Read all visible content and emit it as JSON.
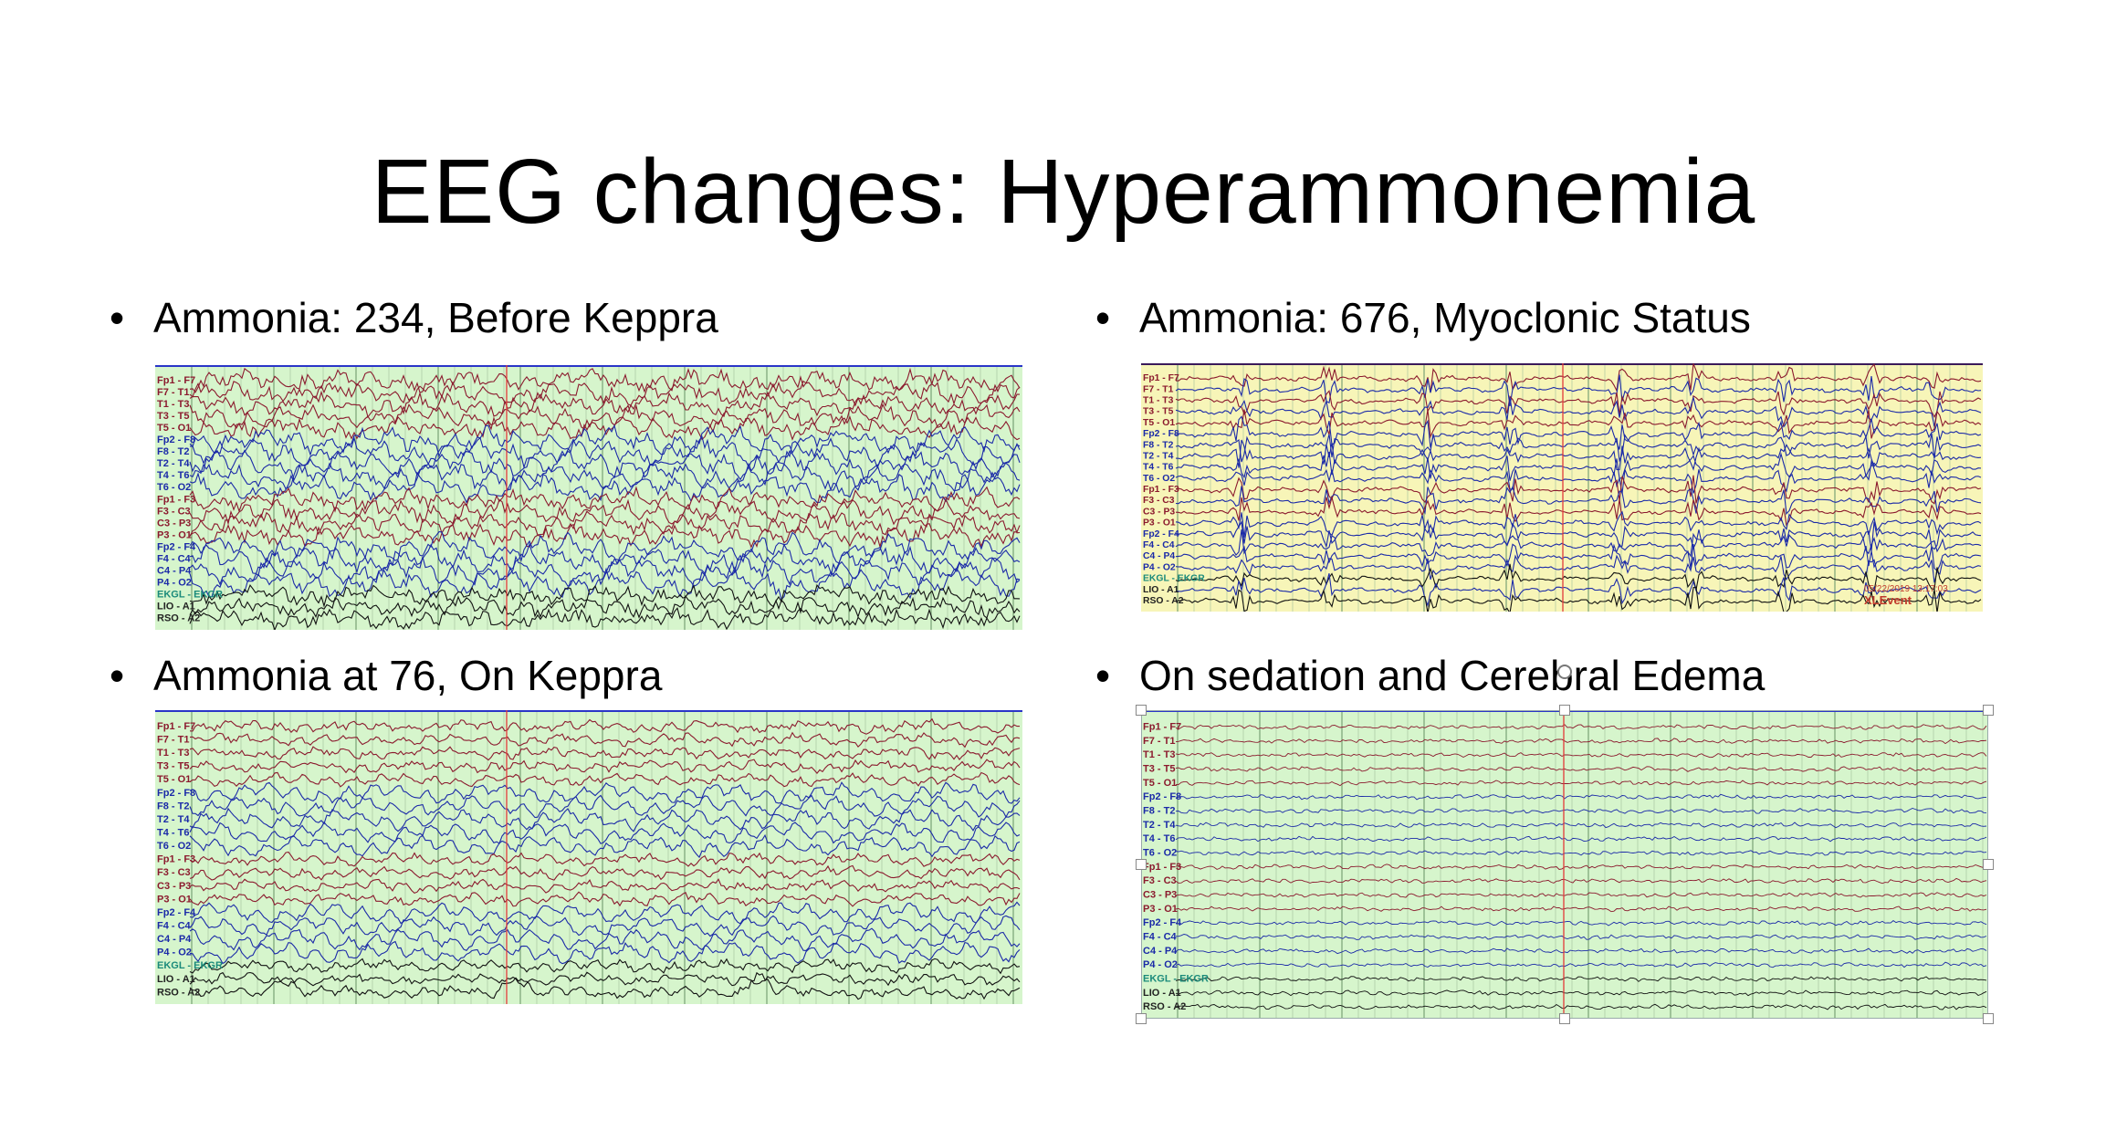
{
  "slide": {
    "title": "EEG changes: Hyperammonemia"
  },
  "panels": [
    {
      "bullet": "Ammonia: 234, Before Keppra",
      "bg": "#d6f5cc",
      "pattern": "dense",
      "channels": [
        "Fp1 - F7",
        "F7 - T1",
        "T1 - T3",
        "T3 - T5",
        "T5 - O1",
        "Fp2 - F8",
        "F8 - T2",
        "T2 - T4",
        "T4 - T6",
        "T6 - O2",
        "Fp1 - F3",
        "F3 - C3",
        "C3 - P3",
        "P3 - O1",
        "Fp2 - F4",
        "F4 - C4",
        "C4 - P4",
        "P4 - O2",
        "EKGL - EKGR",
        "LIO - A1",
        "RSO - A2"
      ],
      "stamp": ""
    },
    {
      "bullet": "Ammonia: 676, Myoclonic Status",
      "bg": "#f7f5b8",
      "pattern": "bursts",
      "channels": [
        "Fp1 - F7",
        "F7 - T1",
        "T1 - T3",
        "T3 - T5",
        "T5 - O1",
        "Fp2 - F8",
        "F8 - T2",
        "T2 - T4",
        "T4 - T6",
        "T6 - O2",
        "Fp1 - F3",
        "F3 - C3",
        "C3 - P3",
        "P3 - O1",
        "Fp2 - F4",
        "F4 - C4",
        "C4 - P4",
        "P4 - O2",
        "EKGL - EKGR",
        "LIO - A1",
        "RSO - A2"
      ],
      "stamp": "05/22/2019 13:17:03",
      "stamp2": "XLEvent"
    },
    {
      "bullet": "Ammonia at 76, On Keppra",
      "bg": "#d6f5cc",
      "pattern": "medium",
      "channels": [
        "Fp1 - F7",
        "F7 - T1",
        "T1 - T3",
        "T3 - T5",
        "T5 - O1",
        "Fp2 - F8",
        "F8 - T2",
        "T2 - T4",
        "T4 - T6",
        "T6 - O2",
        "Fp1 - F3",
        "F3 - C3",
        "C3 - P3",
        "P3 - O1",
        "Fp2 - F4",
        "F4 - C4",
        "C4 - P4",
        "P4 - O2",
        "EKGL - EKGR",
        "LIO - A1",
        "RSO - A2"
      ],
      "stamp": ""
    },
    {
      "bullet": "On sedation and Cerebral Edema",
      "bg": "#d6f5cc",
      "pattern": "flat",
      "channels": [
        "Fp1 - F7",
        "F7 - T1",
        "T1 - T3",
        "T3 - T5",
        "T5 - O1",
        "Fp2 - F8",
        "F8 - T2",
        "T2 - T4",
        "T4 - T6",
        "T6 - O2",
        "Fp1 - F3",
        "F3 - C3",
        "C3 - P3",
        "P3 - O1",
        "Fp2 - F4",
        "F4 - C4",
        "C4 - P4",
        "P4 - O2",
        "EKGL - EKGR",
        "LIO - A1",
        "RSO - A2"
      ],
      "stamp": ""
    }
  ],
  "colors": {
    "red_trace": "#8b1a2e",
    "blue_trace": "#1b2aa8",
    "black_trace": "#111111",
    "teal_label": "#1a8a7a",
    "grid": "#9fbf9a",
    "marker": "#e23a3a"
  }
}
